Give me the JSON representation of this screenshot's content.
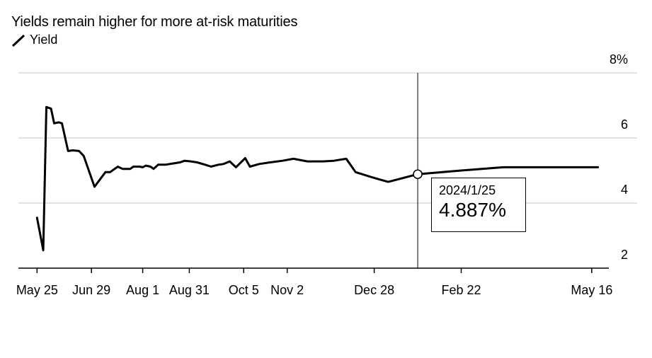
{
  "chart_data": {
    "type": "line",
    "title": "Yields remain higher for more at-risk maturities",
    "series": [
      {
        "name": "Yield",
        "color": "#000000",
        "points": [
          [
            "2023-05-25",
            3.55
          ],
          [
            "2023-05-29",
            2.55
          ],
          [
            "2023-05-31",
            6.95
          ],
          [
            "2023-06-03",
            6.9
          ],
          [
            "2023-06-05",
            6.45
          ],
          [
            "2023-06-08",
            6.48
          ],
          [
            "2023-06-10",
            6.45
          ],
          [
            "2023-06-14",
            5.6
          ],
          [
            "2023-06-17",
            5.62
          ],
          [
            "2023-06-21",
            5.6
          ],
          [
            "2023-06-24",
            5.45
          ],
          [
            "2023-07-01",
            4.5
          ],
          [
            "2023-07-08",
            4.95
          ],
          [
            "2023-07-11",
            4.95
          ],
          [
            "2023-07-16",
            5.12
          ],
          [
            "2023-07-19",
            5.05
          ],
          [
            "2023-07-24",
            5.05
          ],
          [
            "2023-07-26",
            5.12
          ],
          [
            "2023-07-30",
            5.12
          ],
          [
            "2023-08-01",
            5.1
          ],
          [
            "2023-08-03",
            5.15
          ],
          [
            "2023-08-06",
            5.12
          ],
          [
            "2023-08-08",
            5.05
          ],
          [
            "2023-08-11",
            5.18
          ],
          [
            "2023-08-16",
            5.18
          ],
          [
            "2023-08-21",
            5.22
          ],
          [
            "2023-08-25",
            5.25
          ],
          [
            "2023-08-28",
            5.3
          ],
          [
            "2023-09-01",
            5.28
          ],
          [
            "2023-09-05",
            5.25
          ],
          [
            "2023-09-10",
            5.18
          ],
          [
            "2023-09-14",
            5.12
          ],
          [
            "2023-09-19",
            5.18
          ],
          [
            "2023-09-22",
            5.2
          ],
          [
            "2023-09-26",
            5.28
          ],
          [
            "2023-09-30",
            5.1
          ],
          [
            "2023-10-06",
            5.38
          ],
          [
            "2023-10-09",
            5.12
          ],
          [
            "2023-10-15",
            5.2
          ],
          [
            "2023-10-22",
            5.25
          ],
          [
            "2023-10-30",
            5.3
          ],
          [
            "2023-11-06",
            5.36
          ],
          [
            "2023-11-15",
            5.28
          ],
          [
            "2023-11-25",
            5.28
          ],
          [
            "2023-12-02",
            5.3
          ],
          [
            "2023-12-10",
            5.36
          ],
          [
            "2023-12-16",
            4.95
          ],
          [
            "2023-12-26",
            4.8
          ],
          [
            "2024-01-06",
            4.65
          ],
          [
            "2024-01-25",
            4.887
          ],
          [
            "2024-02-22",
            5.0
          ],
          [
            "2024-03-20",
            5.1
          ],
          [
            "2024-04-05",
            5.1
          ],
          [
            "2024-05-20",
            5.1
          ]
        ]
      }
    ],
    "x_ticks": [
      {
        "date": "2023-05-25",
        "label": "May 25"
      },
      {
        "date": "2023-06-29",
        "label": "Jun 29"
      },
      {
        "date": "2023-08-01",
        "label": "Aug 1"
      },
      {
        "date": "2023-08-31",
        "label": "Aug 31"
      },
      {
        "date": "2023-10-05",
        "label": "Oct 5"
      },
      {
        "date": "2023-11-02",
        "label": "Nov 2"
      },
      {
        "date": "2023-12-28",
        "label": "Dec 28"
      },
      {
        "date": "2024-02-22",
        "label": "Feb 22"
      },
      {
        "date": "2024-05-16",
        "label": "May 16"
      }
    ],
    "y_ticks": [
      {
        "value": 8,
        "label": "8%"
      },
      {
        "value": 6,
        "label": "6"
      },
      {
        "value": 4,
        "label": "4"
      },
      {
        "value": 2,
        "label": "2"
      }
    ],
    "xlim": [
      "2023-05-13",
      "2024-05-27"
    ],
    "ylim": [
      2,
      8
    ],
    "grid": true,
    "y_axis_position": "right",
    "legend_position": "top-left",
    "crosshair": {
      "date": "2024-01-25",
      "value": 4.887,
      "date_label": "2024/1/25",
      "value_label": "4.887%"
    }
  }
}
